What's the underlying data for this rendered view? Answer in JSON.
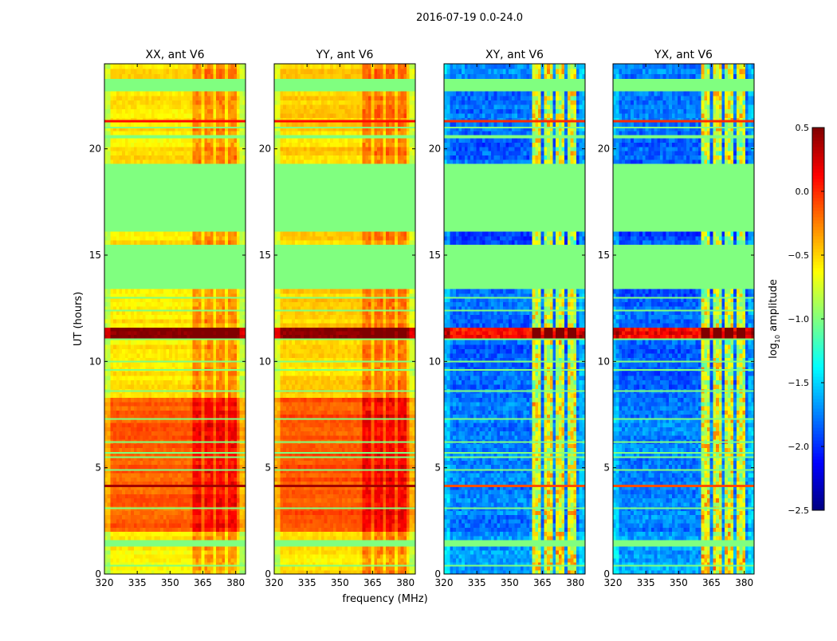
{
  "chart_data": {
    "type": "heatmap",
    "title": "2016-07-19 0.0-24.0",
    "xlabel": "frequency (MHz)",
    "ylabel": "UT (hours)",
    "xlim": [
      320,
      384.5
    ],
    "ylim": [
      0,
      24
    ],
    "xticks": [
      "320",
      "335",
      "350",
      "365",
      "380"
    ],
    "xtick_values": [
      320,
      335,
      350,
      365,
      380
    ],
    "yticks": [
      "0",
      "5",
      "10",
      "15",
      "20"
    ],
    "ytick_values": [
      0,
      5,
      10,
      15,
      20
    ],
    "colorbar": {
      "label_prefix": "log",
      "label_sub": "10",
      "label_suffix": " amplitude",
      "clim": [
        -2.5,
        0.5
      ],
      "colormap": "jet",
      "ticks": [
        "0.5",
        "0.0",
        "−0.5",
        "−1.0",
        "−1.5",
        "−2.0",
        "−2.5"
      ],
      "tick_values": [
        0.5,
        0.0,
        -0.5,
        -1.0,
        -1.5,
        -2.0,
        -2.5
      ]
    },
    "panels": [
      {
        "title": "XX, ant V6",
        "pol": "XX"
      },
      {
        "title": "YY, ant V6",
        "pol": "YY"
      },
      {
        "title": "XY, ant V6",
        "pol": "XY"
      },
      {
        "title": "YX, ant V6",
        "pol": "YX"
      }
    ],
    "flag_value": -1.0,
    "rfi_subbands_mhz": [
      [
        360.5,
        364.5
      ],
      [
        365.5,
        370
      ],
      [
        371,
        375
      ],
      [
        376,
        380.5
      ]
    ],
    "rfi_boost": {
      "XX": 0.3,
      "YY": 0.3,
      "XY": 1.2,
      "YX": 1.2
    },
    "time_bands": [
      {
        "start": 0.0,
        "end": 1.3,
        "flagged": false,
        "level": {
          "XX": -0.6,
          "YY": -0.55,
          "XY": -1.65,
          "YX": -1.65
        }
      },
      {
        "start": 1.3,
        "end": 1.6,
        "flagged": true
      },
      {
        "start": 1.6,
        "end": 2.0,
        "flagged": false,
        "level": {
          "XX": -0.6,
          "YY": -0.55,
          "XY": -1.7,
          "YX": -1.7
        }
      },
      {
        "start": 2.0,
        "end": 8.3,
        "flagged": false,
        "level": {
          "XX": -0.15,
          "YY": -0.12,
          "XY": -1.75,
          "YX": -1.75
        }
      },
      {
        "start": 8.3,
        "end": 11.0,
        "flagged": false,
        "level": {
          "XX": -0.55,
          "YY": -0.5,
          "XY": -1.85,
          "YX": -1.85
        }
      },
      {
        "start": 11.0,
        "end": 11.1,
        "flagged": true
      },
      {
        "start": 11.1,
        "end": 11.6,
        "flagged": false,
        "level": {
          "XX": 0.45,
          "YY": 0.45,
          "XY": 0.1,
          "YX": 0.1
        }
      },
      {
        "start": 11.6,
        "end": 13.4,
        "flagged": false,
        "level": {
          "XX": -0.55,
          "YY": -0.5,
          "XY": -1.85,
          "YX": -1.85
        }
      },
      {
        "start": 13.4,
        "end": 15.5,
        "flagged": true
      },
      {
        "start": 15.5,
        "end": 16.1,
        "flagged": false,
        "level": {
          "XX": -0.55,
          "YY": -0.5,
          "XY": -1.9,
          "YX": -1.9
        }
      },
      {
        "start": 16.1,
        "end": 19.3,
        "flagged": true
      },
      {
        "start": 19.3,
        "end": 20.5,
        "flagged": false,
        "level": {
          "XX": -0.55,
          "YY": -0.5,
          "XY": -1.85,
          "YX": -1.85
        }
      },
      {
        "start": 20.5,
        "end": 20.65,
        "flagged": true
      },
      {
        "start": 20.65,
        "end": 22.7,
        "flagged": false,
        "level": {
          "XX": -0.55,
          "YY": -0.5,
          "XY": -1.8,
          "YX": -1.8
        }
      },
      {
        "start": 22.7,
        "end": 23.3,
        "flagged": true
      },
      {
        "start": 23.3,
        "end": 24.0,
        "flagged": false,
        "level": {
          "XX": -0.55,
          "YY": -0.5,
          "XY": -1.75,
          "YX": -1.75
        }
      }
    ],
    "flagged_lines_hours": [
      0.4,
      3.1,
      4.9,
      5.5,
      5.7,
      6.2,
      7.3,
      8.6,
      9.6,
      10.0,
      12.4,
      13.0,
      21.0,
      23.1
    ],
    "bright_lines": [
      {
        "hour": 4.15,
        "level": {
          "XX": 0.4,
          "YY": 0.4,
          "XY": -0.1,
          "YX": -0.1
        }
      },
      {
        "hour": 21.3,
        "level": {
          "XX": 0.1,
          "YY": 0.1,
          "XY": 0.0,
          "YX": 0.0
        }
      }
    ]
  }
}
